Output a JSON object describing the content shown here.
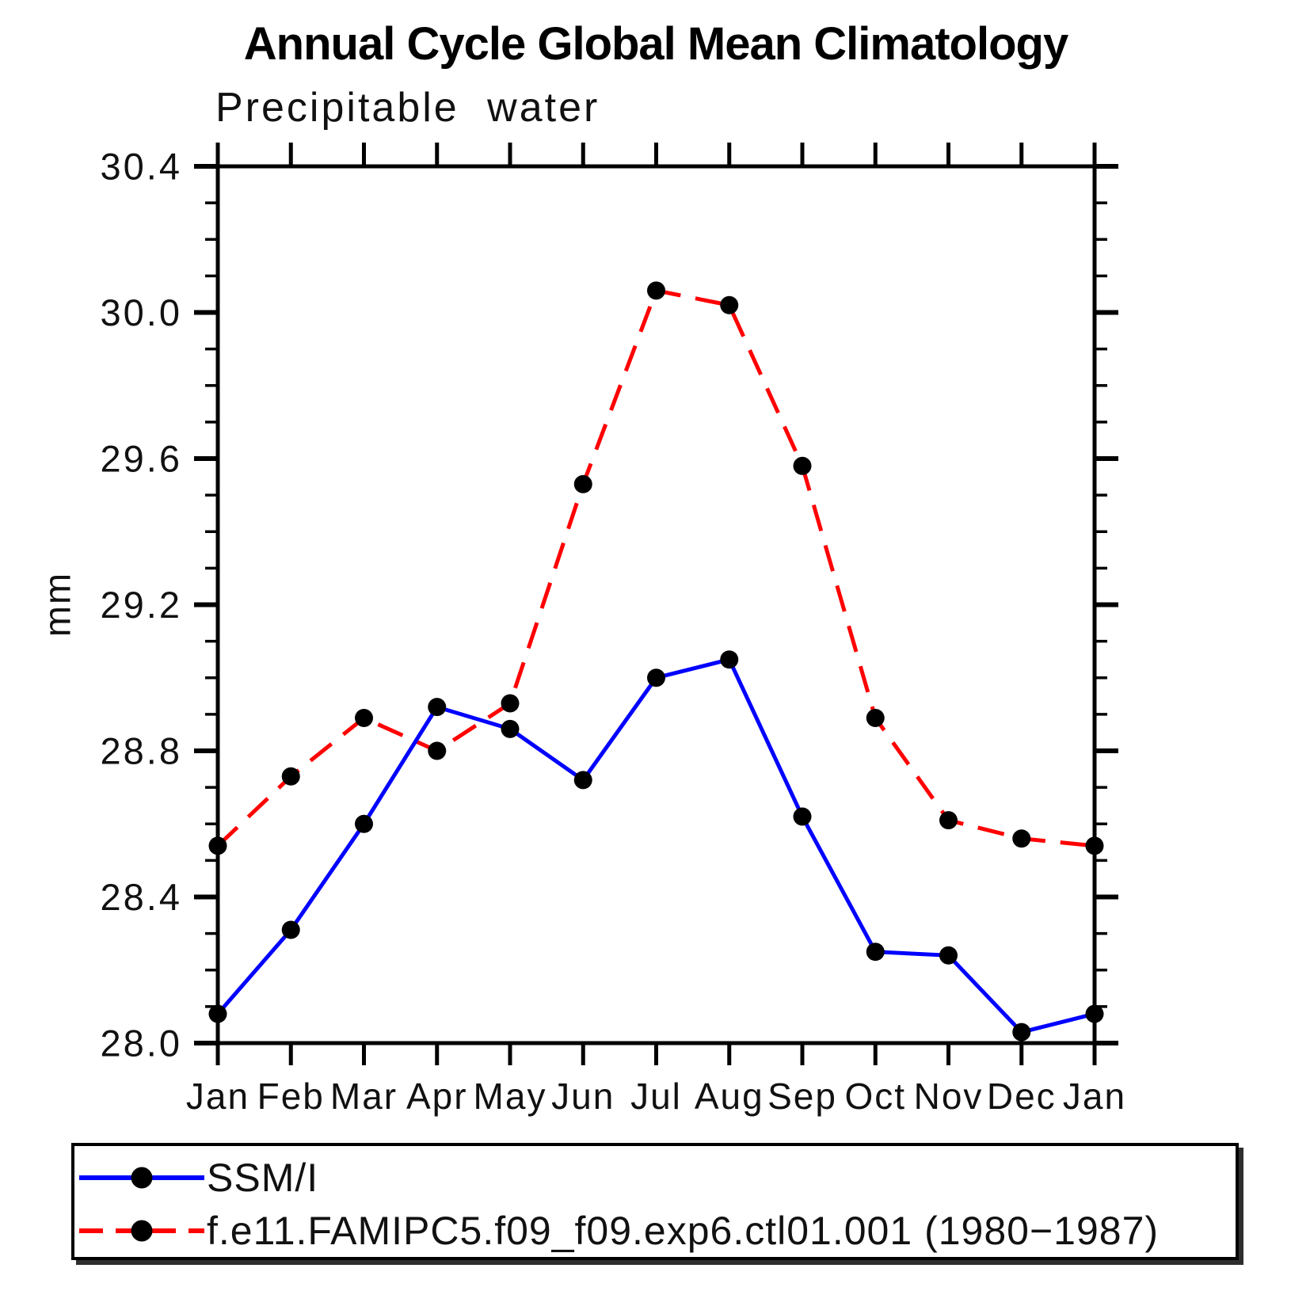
{
  "title": "Annual Cycle Global Mean Climatology",
  "subtitle": "Precipitable water",
  "chart_data": {
    "type": "line",
    "title": "Annual Cycle Global Mean Climatology",
    "subtitle": "Precipitable water",
    "xlabel": "",
    "ylabel": "mm",
    "categories": [
      "Jan",
      "Feb",
      "Mar",
      "Apr",
      "May",
      "Jun",
      "Jul",
      "Aug",
      "Sep",
      "Oct",
      "Nov",
      "Dec",
      "Jan"
    ],
    "ylim": [
      28.0,
      30.4
    ],
    "ytick_major_interval": 0.4,
    "ytick_minor_interval": 0.1,
    "ytick_labels": [
      "28.0",
      "28.4",
      "28.8",
      "29.2",
      "29.6",
      "30.0",
      "30.4"
    ],
    "grid": false,
    "legend_position": "bottom-left-box",
    "axis_color": "#000000",
    "series": [
      {
        "name": "SSM/I",
        "color": "#0000ff",
        "line_style": "solid",
        "marker": "filled-circle",
        "marker_color": "#000000",
        "values": [
          28.08,
          28.31,
          28.6,
          28.92,
          28.86,
          28.72,
          29.0,
          29.05,
          28.62,
          28.25,
          28.24,
          28.03,
          28.08
        ]
      },
      {
        "name": "f.e11.FAMIPC5.f09_f09.exp6.ctl01.001 (1980−1987)",
        "color": "#ff0000",
        "line_style": "dashed",
        "marker": "filled-circle",
        "marker_color": "#000000",
        "values": [
          28.54,
          28.73,
          28.89,
          28.8,
          28.93,
          29.53,
          30.06,
          30.02,
          29.58,
          28.89,
          28.61,
          28.56,
          28.54
        ]
      }
    ]
  }
}
